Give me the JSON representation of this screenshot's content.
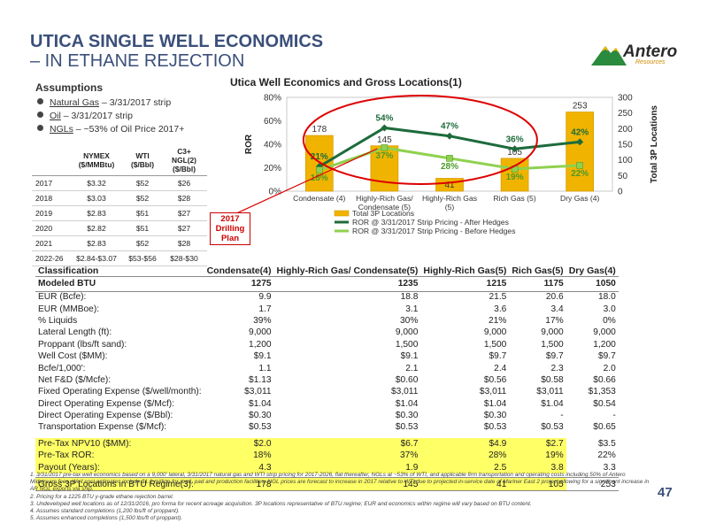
{
  "header": {
    "title_line1": "UTICA SINGLE WELL ECONOMICS",
    "title_line2": "– IN ETHANE REJECTION",
    "logo_name": "Antero",
    "logo_sub": "Resources"
  },
  "assumptions": {
    "heading": "Assumptions",
    "items": [
      {
        "label": "Natural Gas",
        "text": " – 3/31/2017 strip"
      },
      {
        "label": "Oil",
        "text": " – 3/31/2017 strip"
      },
      {
        "label": "NGLs",
        "text": " – ~53% of Oil Price 2017+"
      }
    ],
    "price_table": {
      "headers": [
        "",
        "NYMEX ($/MMBtu)",
        "WTI ($/Bbl)",
        "C3+ NGL(2) ($/Bbl)"
      ],
      "rows": [
        [
          "2017",
          "$3.32",
          "$52",
          "$26"
        ],
        [
          "2018",
          "$3.03",
          "$52",
          "$28"
        ],
        [
          "2019",
          "$2.83",
          "$51",
          "$27"
        ],
        [
          "2020",
          "$2.82",
          "$51",
          "$27"
        ],
        [
          "2021",
          "$2.83",
          "$52",
          "$28"
        ],
        [
          "2022-26",
          "$2.84-$3.07",
          "$53-$56",
          "$28-$30"
        ]
      ]
    }
  },
  "chart_data": {
    "type": "bar",
    "title": "Utica Well Economics and Gross Locations(1)",
    "categories": [
      "Condensate (4)",
      "Highly-Rich Gas/ Condensate (5)",
      "Highly-Rich Gas (5)",
      "Rich Gas (5)",
      "Dry Gas (4)"
    ],
    "series": [
      {
        "name": "Total 3P Locations",
        "type": "bar",
        "axis": "right",
        "values": [
          178,
          145,
          41,
          105,
          253
        ],
        "color": "#f0b400"
      },
      {
        "name": "ROR @ 3/31/2017 Strip Pricing - After Hedges",
        "type": "line",
        "axis": "left",
        "values": [
          21,
          54,
          47,
          36,
          42
        ],
        "labels": [
          "21%",
          "54%",
          "47%",
          "36%",
          "42%"
        ],
        "color": "#1e6b3c"
      },
      {
        "name": "ROR @ 3/31/2017 Strip Pricing - Before Hedges",
        "type": "line",
        "axis": "left",
        "values": [
          18,
          37,
          28,
          19,
          22
        ],
        "labels": [
          "18%",
          "37%",
          "28%",
          "19%",
          "22%"
        ],
        "color": "#8fd14f"
      }
    ],
    "ylabel": "ROR",
    "y2label": "Total 3P Locations",
    "ylim": [
      0,
      80
    ],
    "y2lim": [
      0,
      300
    ],
    "yticks": [
      "0%",
      "20%",
      "40%",
      "60%",
      "80%"
    ],
    "y2ticks": [
      "0",
      "50",
      "100",
      "150",
      "200",
      "250",
      "300"
    ],
    "legend": [
      "Total 3P Locations",
      "ROR @ 3/31/2017 Strip Pricing - After Hedges",
      "ROR @ 3/31/2017 Strip Pricing - Before Hedges"
    ],
    "legend_position": "bottom",
    "annotation": "2017 Drilling Plan"
  },
  "econ_table": {
    "headers": [
      "Classification",
      "Condensate(4)",
      "Highly-Rich Gas/ Condensate(5)",
      "Highly-Rich Gas(5)",
      "Rich Gas(5)",
      "Dry Gas(4)"
    ],
    "btu_row": [
      "Modeled BTU",
      "1275",
      "1235",
      "1215",
      "1175",
      "1050"
    ],
    "rows": [
      [
        "EUR (Bcfe):",
        "9.9",
        "18.8",
        "21.5",
        "20.6",
        "18.0"
      ],
      [
        "EUR (MMBoe):",
        "1.7",
        "3.1",
        "3.6",
        "3.4",
        "3.0"
      ],
      [
        "% Liquids",
        "39%",
        "30%",
        "21%",
        "17%",
        "0%"
      ],
      [
        "Lateral Length (ft):",
        "9,000",
        "9,000",
        "9,000",
        "9,000",
        "9,000"
      ],
      [
        "Proppant (lbs/ft sand):",
        "1,200",
        "1,500",
        "1,500",
        "1,500",
        "1,200"
      ],
      [
        "Well Cost ($MM):",
        "$9.1",
        "$9.1",
        "$9.7",
        "$9.7",
        "$9.7"
      ],
      [
        "Bcfe/1,000':",
        "1.1",
        "2.1",
        "2.4",
        "2.3",
        "2.0"
      ],
      [
        "Net F&D ($/Mcfe):",
        "$1.13",
        "$0.60",
        "$0.56",
        "$0.58",
        "$0.66"
      ],
      [
        "Fixed Operating Expense ($/well/month):",
        "$3,011",
        "$3,011",
        "$3,011",
        "$3,011",
        "$1,353"
      ],
      [
        "Direct Operating Expense ($/Mcf):",
        "$1.04",
        "$1.04",
        "$1.04",
        "$1.04",
        "$0.54"
      ],
      [
        "Direct Operating Expense ($/Bbl):",
        "$0.30",
        "$0.30",
        "$0.30",
        "-",
        "-"
      ],
      [
        "Transportation Expense ($/Mcf):",
        "$0.53",
        "$0.53",
        "$0.53",
        "$0.53",
        "$0.65"
      ]
    ],
    "highlight_rows": [
      [
        "Pre-Tax NPV10 ($MM):",
        "$2.0",
        "$6.7",
        "$4.9",
        "$2.7",
        "$3.5"
      ],
      [
        "Pre-Tax ROR:",
        "18%",
        "37%",
        "28%",
        "19%",
        "22%"
      ],
      [
        "Payout (Years):",
        "4.3",
        "1.9",
        "2.5",
        "3.8",
        "3.3"
      ]
    ],
    "gross_row": [
      "Gross 3P Locations in BTU Regime(3):",
      "178",
      "145",
      "41",
      "105",
      "253"
    ]
  },
  "footnotes": [
    "1. 3/31/2017 pre-tax well economics based on a 9,000' lateral, 3/31/2017 natural gas and WTI strip pricing for 2017-2026, flat thereafter, NGLs at ~53% of WTI, and applicable firm transportation and operating costs including 50% of Antero Midstream fees. Well cost estimates include $1.2 million for road, pad and production facilities. NGL prices are forecast to increase in 2017 relative to WTI due to projected in-service date of Mariner East 2 project allowing for a significant increase in AR NGL exports via ship.",
    "2. Pricing for a 1225 BTU y-grade ethane rejection barrel.",
    "3. Undeveloped well locations as of 12/31/2016, pro forma for recent acreage acquisition. 3P locations representative of BTU regime; EUR and economics within regime will vary based on BTU content.",
    "4. Assumes standard completions (1,200 lbs/ft of proppant).",
    "5. Assumes enhanced completions (1,500 lbs/ft of proppant)."
  ],
  "page_number": "47"
}
